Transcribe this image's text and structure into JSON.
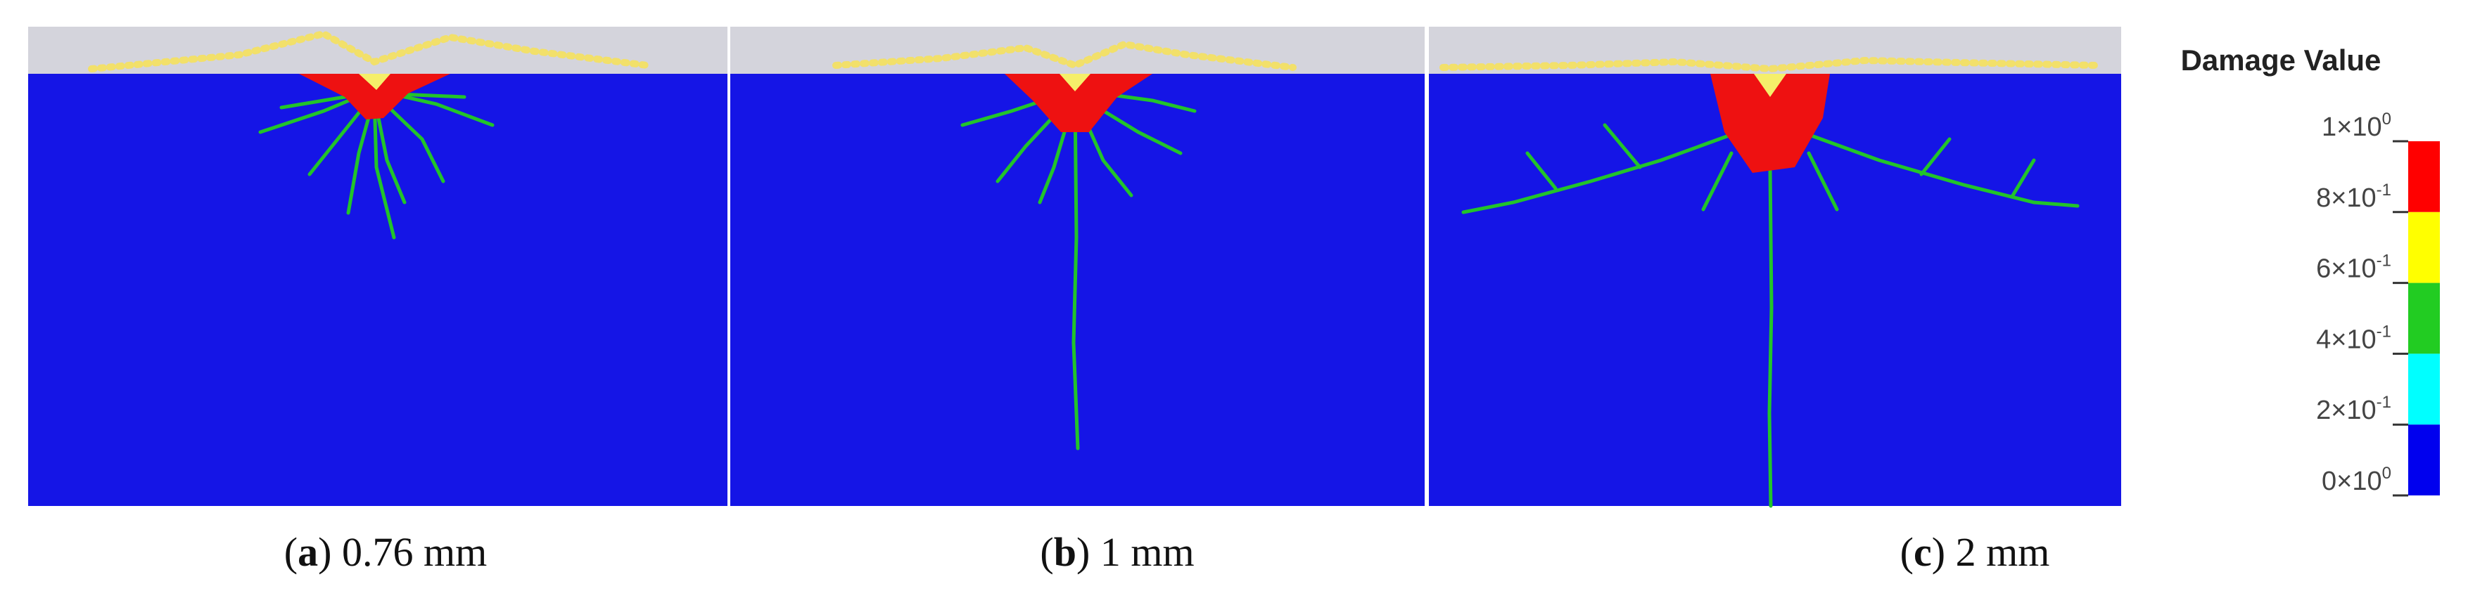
{
  "panels": [
    {
      "label_open": "(",
      "label": "a",
      "label_close": ")",
      "caption": "0.76 mm"
    },
    {
      "label_open": "(",
      "label": "b",
      "label_close": ")",
      "caption": "1 mm"
    },
    {
      "label_open": "(",
      "label": "c",
      "label_close": ")",
      "caption": "2 mm"
    }
  ],
  "legend": {
    "title": "Damage Value",
    "ticks": [
      {
        "base": "1×10",
        "exponent": "0"
      },
      {
        "base": "8×10",
        "exponent": "-1"
      },
      {
        "base": "6×10",
        "exponent": "-1"
      },
      {
        "base": "4×10",
        "exponent": "-1"
      },
      {
        "base": "2×10",
        "exponent": "-1"
      },
      {
        "base": "0×10",
        "exponent": "0"
      }
    ],
    "colors": [
      "#ff0000",
      "#ffff00",
      "#22cc22",
      "#00ffff",
      "#0000ee"
    ]
  }
}
